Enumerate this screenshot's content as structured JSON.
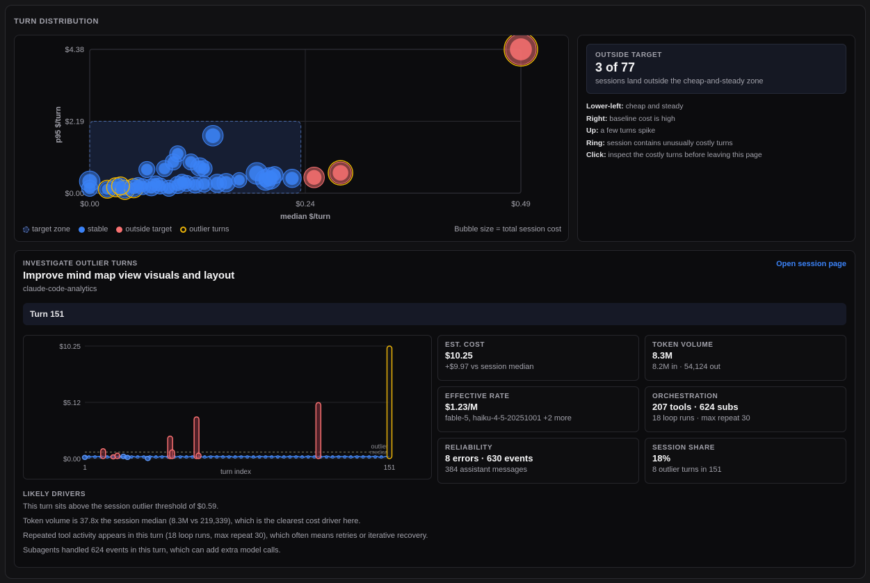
{
  "section_title": "TURN DISTRIBUTION",
  "scatter": {
    "legend": {
      "target_zone": "target zone",
      "stable": "stable",
      "outside_target": "outside target",
      "outlier_turns": "outlier turns",
      "bubble_note": "Bubble size = total session cost"
    },
    "colors": {
      "stable": "#3b82f6",
      "outside": "#f87171",
      "ring": "#eab308",
      "zone": "#3b5b9a"
    }
  },
  "chart_data": [
    {
      "type": "scatter",
      "xlabel": "median $/turn",
      "ylabel": "p95 $/turn",
      "xlim": [
        0,
        0.49
      ],
      "ylim": [
        0,
        4.38
      ],
      "xticks": [
        "$0.00",
        "$0.24",
        "$0.49"
      ],
      "yticks": [
        "$0.00",
        "$2.19",
        "$4.38"
      ],
      "target_zone": {
        "x": [
          0,
          0.24
        ],
        "y": [
          0,
          2.19
        ]
      },
      "points": [
        {
          "x": 0.49,
          "y": 4.38,
          "r": 1.0,
          "kind": "outside",
          "ring": true
        },
        {
          "x": 0.285,
          "y": 0.62,
          "r": 0.6,
          "kind": "outside",
          "ring": true
        },
        {
          "x": 0.255,
          "y": 0.48,
          "r": 0.55,
          "kind": "outside",
          "ring": false
        },
        {
          "x": 0.14,
          "y": 1.75,
          "r": 0.55,
          "kind": "stable",
          "ring": false
        },
        {
          "x": 0.0,
          "y": 0.36,
          "r": 0.55,
          "kind": "stable",
          "ring": false
        },
        {
          "x": 0.0,
          "y": 0.15,
          "r": 0.35,
          "kind": "stable",
          "ring": false
        },
        {
          "x": 0.065,
          "y": 0.72,
          "r": 0.35,
          "kind": "stable",
          "ring": false
        },
        {
          "x": 0.1,
          "y": 1.2,
          "r": 0.35,
          "kind": "stable",
          "ring": false
        },
        {
          "x": 0.095,
          "y": 0.95,
          "r": 0.35,
          "kind": "stable",
          "ring": false
        },
        {
          "x": 0.085,
          "y": 0.75,
          "r": 0.35,
          "kind": "stable",
          "ring": false
        },
        {
          "x": 0.115,
          "y": 0.95,
          "r": 0.35,
          "kind": "stable",
          "ring": false
        },
        {
          "x": 0.125,
          "y": 0.8,
          "r": 0.45,
          "kind": "stable",
          "ring": false
        },
        {
          "x": 0.13,
          "y": 0.75,
          "r": 0.35,
          "kind": "stable",
          "ring": false
        },
        {
          "x": 0.19,
          "y": 0.6,
          "r": 0.6,
          "kind": "stable",
          "ring": false
        },
        {
          "x": 0.205,
          "y": 0.45,
          "r": 0.6,
          "kind": "stable",
          "ring": false
        },
        {
          "x": 0.2,
          "y": 0.4,
          "r": 0.55,
          "kind": "stable",
          "ring": false
        },
        {
          "x": 0.23,
          "y": 0.45,
          "r": 0.45,
          "kind": "stable",
          "ring": false
        },
        {
          "x": 0.02,
          "y": 0.12,
          "r": 0.3,
          "kind": "stable",
          "ring": true
        },
        {
          "x": 0.03,
          "y": 0.18,
          "r": 0.35,
          "kind": "stable",
          "ring": true
        },
        {
          "x": 0.04,
          "y": 0.1,
          "r": 0.35,
          "kind": "stable",
          "ring": true
        },
        {
          "x": 0.05,
          "y": 0.15,
          "r": 0.35,
          "kind": "stable",
          "ring": true
        },
        {
          "x": 0.06,
          "y": 0.2,
          "r": 0.35,
          "kind": "stable",
          "ring": false
        },
        {
          "x": 0.07,
          "y": 0.18,
          "r": 0.4,
          "kind": "stable",
          "ring": false
        },
        {
          "x": 0.08,
          "y": 0.22,
          "r": 0.35,
          "kind": "stable",
          "ring": false
        },
        {
          "x": 0.09,
          "y": 0.15,
          "r": 0.35,
          "kind": "stable",
          "ring": false
        },
        {
          "x": 0.1,
          "y": 0.25,
          "r": 0.4,
          "kind": "stable",
          "ring": false
        },
        {
          "x": 0.11,
          "y": 0.3,
          "r": 0.35,
          "kind": "stable",
          "ring": false
        },
        {
          "x": 0.12,
          "y": 0.25,
          "r": 0.35,
          "kind": "stable",
          "ring": false
        },
        {
          "x": 0.13,
          "y": 0.28,
          "r": 0.35,
          "kind": "stable",
          "ring": false
        },
        {
          "x": 0.145,
          "y": 0.3,
          "r": 0.45,
          "kind": "stable",
          "ring": false
        },
        {
          "x": 0.155,
          "y": 0.32,
          "r": 0.45,
          "kind": "stable",
          "ring": false
        },
        {
          "x": 0.035,
          "y": 0.22,
          "r": 0.3,
          "kind": "stable",
          "ring": true
        },
        {
          "x": 0.055,
          "y": 0.25,
          "r": 0.3,
          "kind": "stable",
          "ring": false
        },
        {
          "x": 0.075,
          "y": 0.3,
          "r": 0.3,
          "kind": "stable",
          "ring": false
        },
        {
          "x": 0.105,
          "y": 0.35,
          "r": 0.3,
          "kind": "stable",
          "ring": false
        },
        {
          "x": 0.17,
          "y": 0.4,
          "r": 0.3,
          "kind": "stable",
          "ring": false
        },
        {
          "x": 0.21,
          "y": 0.55,
          "r": 0.4,
          "kind": "stable",
          "ring": false
        }
      ]
    },
    {
      "type": "bar",
      "xlabel": "turn index",
      "ylabel": "",
      "ylim": [
        0,
        10.25
      ],
      "yticks": [
        "$0.00",
        "$5.12",
        "$10.25"
      ],
      "xticks": [
        "1",
        "151"
      ],
      "threshold": 0.59,
      "threshold_labels": [
        "outlier",
        "median"
      ],
      "bars": [
        {
          "turn": 1,
          "value": 0.3,
          "kind": "stable"
        },
        {
          "turn": 10,
          "value": 0.9,
          "kind": "outside"
        },
        {
          "turn": 15,
          "value": 0.35,
          "kind": "outside"
        },
        {
          "turn": 17,
          "value": 0.5,
          "kind": "outside"
        },
        {
          "turn": 20,
          "value": 0.4,
          "kind": "stable"
        },
        {
          "turn": 22,
          "value": 0.3,
          "kind": "stable"
        },
        {
          "turn": 32,
          "value": 0.2,
          "kind": "stable"
        },
        {
          "turn": 43,
          "value": 2.05,
          "kind": "outside"
        },
        {
          "turn": 44,
          "value": 0.8,
          "kind": "outside"
        },
        {
          "turn": 56,
          "value": 3.8,
          "kind": "outside"
        },
        {
          "turn": 57,
          "value": 0.5,
          "kind": "outside"
        },
        {
          "turn": 116,
          "value": 5.1,
          "kind": "outside"
        },
        {
          "turn": 151,
          "value": 10.25,
          "kind": "ring"
        }
      ]
    }
  ],
  "side": {
    "ot_label": "OUTSIDE TARGET",
    "ot_value": "3 of 77",
    "ot_desc": "sessions land outside the cheap-and-steady zone",
    "lines": [
      {
        "key": "Lower-left:",
        "text": " cheap and steady"
      },
      {
        "key": "Right:",
        "text": " baseline cost is high"
      },
      {
        "key": "Up:",
        "text": " a few turns spike"
      },
      {
        "key": "Ring:",
        "text": " session contains unusually costly turns"
      },
      {
        "key": "Click:",
        "text": " inspect the costly turns before leaving this page"
      }
    ]
  },
  "detail": {
    "label": "INVESTIGATE OUTLIER TURNS",
    "title": "Improve mind map view visuals and layout",
    "project": "claude-code-analytics",
    "open_link": "Open session page",
    "turn": "Turn 151",
    "metrics": [
      {
        "label": "EST. COST",
        "value": "$10.25",
        "sub": "+$9.97 vs session median"
      },
      {
        "label": "TOKEN VOLUME",
        "value": "8.3M",
        "sub": "8.2M in · 54,124 out"
      },
      {
        "label": "EFFECTIVE RATE",
        "value": "$1.23/M",
        "sub": "fable-5, haiku-4-5-20251001 +2 more"
      },
      {
        "label": "ORCHESTRATION",
        "value": "207 tools · 624 subs",
        "sub": "18 loop runs · max repeat 30"
      },
      {
        "label": "RELIABILITY",
        "value": "8 errors · 630 events",
        "sub": "384 assistant messages"
      },
      {
        "label": "SESSION SHARE",
        "value": "18%",
        "sub": "8 outlier turns in 151"
      }
    ],
    "drivers_title": "LIKELY DRIVERS",
    "drivers": [
      "This turn sits above the session outlier threshold of $0.59.",
      "Token volume is 37.8x the session median (8.3M vs 219,339), which is the clearest cost driver here.",
      "Repeated tool activity appears in this turn (18 loop runs, max repeat 30), which often means retries or iterative recovery.",
      "Subagents handled 624 events in this turn, which can add extra model calls."
    ]
  }
}
